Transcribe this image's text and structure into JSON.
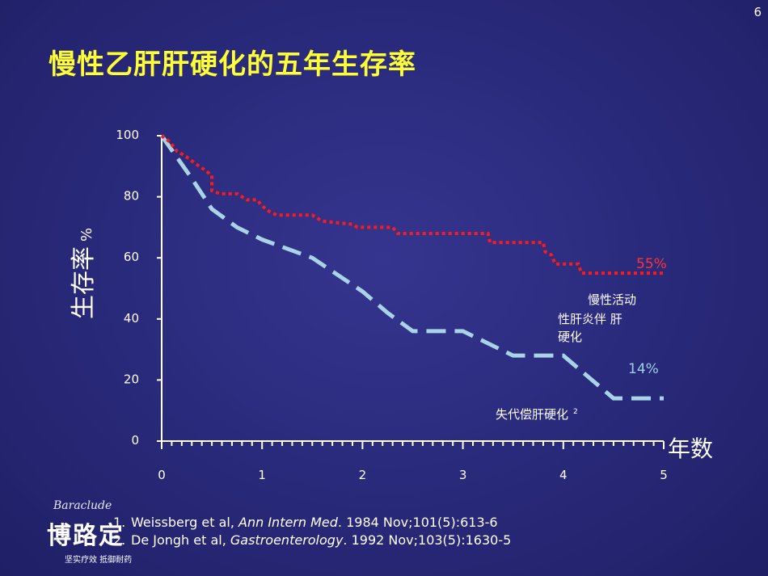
{
  "slide": {
    "number": "6",
    "title": "慢性乙肝肝硬化的五年生存率"
  },
  "chart_data": {
    "type": "line",
    "ylabel": "生存率",
    "ylabel_unit": "%",
    "xlabel": "年数",
    "xlim": [
      0,
      5
    ],
    "ylim": [
      0,
      100
    ],
    "x_ticks": [
      "0",
      "1",
      "2",
      "3",
      "4",
      "5"
    ],
    "y_ticks": [
      "0",
      "20",
      "40",
      "60",
      "80",
      "100"
    ],
    "grid": false,
    "series": [
      {
        "name": "慢性活动性肝炎伴 肝硬化",
        "label_lines": [
          "慢性活动",
          "性肝炎伴  肝",
          "硬化"
        ],
        "style": "dotted",
        "color": "#ff1a1a",
        "end_label": "55%",
        "points": [
          [
            0,
            100
          ],
          [
            0.08,
            98
          ],
          [
            0.15,
            95
          ],
          [
            0.25,
            93
          ],
          [
            0.33,
            91
          ],
          [
            0.42,
            89
          ],
          [
            0.5,
            87
          ],
          [
            0.5,
            82
          ],
          [
            0.58,
            81
          ],
          [
            0.75,
            81
          ],
          [
            0.85,
            79
          ],
          [
            0.95,
            79
          ],
          [
            1.0,
            77
          ],
          [
            1.08,
            75
          ],
          [
            1.15,
            74
          ],
          [
            1.5,
            74
          ],
          [
            1.6,
            72
          ],
          [
            1.9,
            71
          ],
          [
            1.95,
            70
          ],
          [
            2.3,
            70
          ],
          [
            2.35,
            68
          ],
          [
            3.0,
            68
          ],
          [
            3.25,
            68
          ],
          [
            3.27,
            65
          ],
          [
            3.8,
            65
          ],
          [
            3.82,
            62
          ],
          [
            3.88,
            61
          ],
          [
            3.92,
            58
          ],
          [
            4.15,
            58
          ],
          [
            4.18,
            55
          ],
          [
            5.0,
            55
          ]
        ]
      },
      {
        "name": "失代偿肝硬化",
        "label_superscript": "2",
        "style": "dashed",
        "color": "#a8d4e6",
        "end_label": "14%",
        "points": [
          [
            0,
            100
          ],
          [
            0.15,
            93
          ],
          [
            0.3,
            86
          ],
          [
            0.5,
            76
          ],
          [
            0.75,
            70
          ],
          [
            1.0,
            66
          ],
          [
            1.5,
            60
          ],
          [
            2.0,
            49
          ],
          [
            2.25,
            42
          ],
          [
            2.5,
            36
          ],
          [
            3.0,
            36
          ],
          [
            3.5,
            28
          ],
          [
            4.0,
            28
          ],
          [
            4.25,
            21
          ],
          [
            4.5,
            14
          ],
          [
            5.0,
            14
          ]
        ]
      }
    ]
  },
  "references": [
    {
      "num": "1.",
      "authors": "Weissberg et al, ",
      "journal": "Ann Intern Med",
      "rest": ". 1984 Nov;101(5):613-6"
    },
    {
      "num": "2.",
      "authors": "De Jongh et al, ",
      "journal": "Gastroenterology",
      "rest": ". 1992 Nov;103(5):1630-5"
    }
  ],
  "logo": {
    "brand_en": "Baraclude",
    "brand_cn": "博路定",
    "tagline": "坚实疗效  抵御耐药"
  },
  "colors": {
    "title": "#ffff33",
    "background": "#2b2b7e",
    "axis": "#ffffff"
  }
}
